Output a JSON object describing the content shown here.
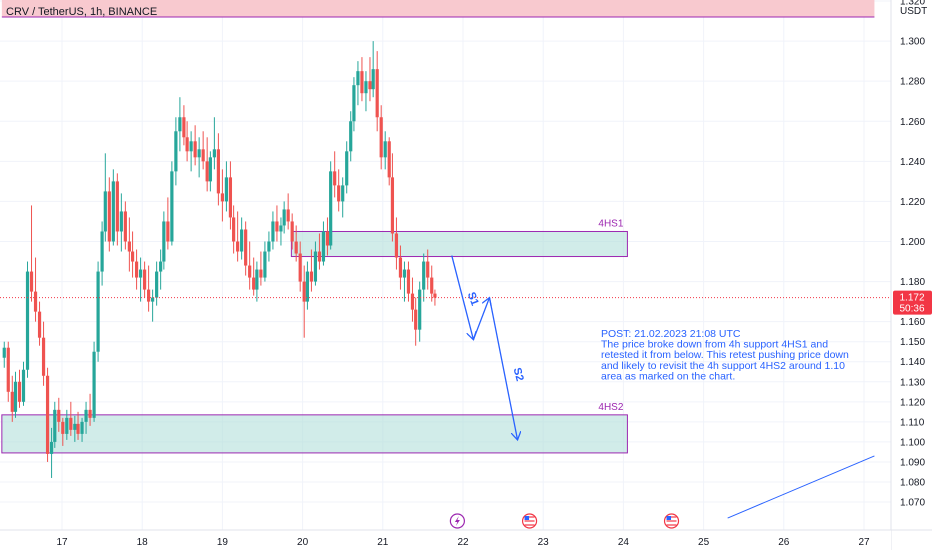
{
  "header": {
    "symbol": "CRV / TetherUS, 1h, BINANCE",
    "currency": "USDT"
  },
  "price_badge": {
    "price": "1.172",
    "countdown": "50:36",
    "color": "#f23645"
  },
  "colors": {
    "up": "#26a69a",
    "down": "#ef5350",
    "zone_fill": "#b2dfdb",
    "zone_border": "#9c27b0",
    "resistance_fill": "#f8c9cf",
    "drawing": "#2962ff"
  },
  "chart_data": {
    "type": "candlestick",
    "symbol": "CRV / TetherUS",
    "timeframe": "1h",
    "exchange": "BINANCE",
    "x_ticks": [
      "17",
      "18",
      "19",
      "20",
      "21",
      "22",
      "23",
      "24",
      "25",
      "26",
      "27"
    ],
    "x_range_days": [
      16.25,
      27.13
    ],
    "y_ticks": [
      "1.320",
      "1.300",
      "1.280",
      "1.260",
      "1.240",
      "1.220",
      "1.200",
      "1.180",
      "1.160",
      "1.150",
      "1.140",
      "1.130",
      "1.120",
      "1.110",
      "1.100",
      "1.090",
      "1.080",
      "1.070"
    ],
    "ylim": [
      1.062,
      1.33
    ],
    "last_price": 1.172,
    "zones": [
      {
        "name": "4HS1",
        "low": 1.1925,
        "high": 1.205,
        "start_day": 19.86,
        "end_day": 24.05
      },
      {
        "name": "4HS2",
        "low": 1.0945,
        "high": 1.1135,
        "start_day": 16.25,
        "end_day": 24.05
      },
      {
        "name": "resistance",
        "low": 1.312,
        "high": 1.33,
        "start_day": 16.25,
        "end_day": 27.13
      }
    ],
    "projection": {
      "labels": [
        "S1",
        "S2"
      ],
      "path": [
        {
          "day": 21.86,
          "price": 1.193
        },
        {
          "day": 22.13,
          "price": 1.151
        },
        {
          "day": 22.33,
          "price": 1.172
        },
        {
          "day": 22.68,
          "price": 1.101
        }
      ]
    },
    "trendline": [
      {
        "day": 25.3,
        "price": 1.062
      },
      {
        "day": 27.13,
        "price": 1.093
      }
    ],
    "annotation": [
      "POST: 21.02.2023 21:08 UTC",
      "The price broke down from 4h support 4HS1 and",
      "retested it from below. This retest pushing price down",
      "and likely to revisit the 4h support 4HS2 around 1.10",
      "area as marked on the chart."
    ],
    "events": [
      {
        "day": 21.93,
        "icon": "lightning-icon"
      },
      {
        "day": 22.83,
        "icon": "us-flag-icon"
      },
      {
        "day": 24.6,
        "icon": "us-flag-icon"
      }
    ],
    "candles": [
      [
        16.28,
        1.142,
        1.15,
        1.137,
        1.147
      ],
      [
        16.33,
        1.147,
        1.15,
        1.12,
        1.125
      ],
      [
        16.38,
        1.125,
        1.133,
        1.11,
        1.115
      ],
      [
        16.42,
        1.115,
        1.135,
        1.112,
        1.13
      ],
      [
        16.47,
        1.13,
        1.136,
        1.117,
        1.12
      ],
      [
        16.52,
        1.12,
        1.14,
        1.118,
        1.136
      ],
      [
        16.57,
        1.136,
        1.19,
        1.132,
        1.185
      ],
      [
        16.62,
        1.185,
        1.218,
        1.17,
        1.175
      ],
      [
        16.67,
        1.175,
        1.192,
        1.16,
        1.165
      ],
      [
        16.72,
        1.165,
        1.17,
        1.148,
        1.152
      ],
      [
        16.77,
        1.152,
        1.16,
        1.128,
        1.133
      ],
      [
        16.82,
        1.133,
        1.137,
        1.09,
        1.094
      ],
      [
        16.87,
        1.094,
        1.107,
        1.082,
        1.1
      ],
      [
        16.91,
        1.1,
        1.12,
        1.097,
        1.116
      ],
      [
        16.96,
        1.116,
        1.122,
        1.105,
        1.11
      ],
      [
        17.01,
        1.11,
        1.112,
        1.098,
        1.104
      ],
      [
        17.06,
        1.104,
        1.116,
        1.101,
        1.112
      ],
      [
        17.11,
        1.112,
        1.12,
        1.103,
        1.106
      ],
      [
        17.16,
        1.106,
        1.113,
        1.1,
        1.109
      ],
      [
        17.2,
        1.109,
        1.115,
        1.101,
        1.104
      ],
      [
        17.25,
        1.104,
        1.112,
        1.1,
        1.11
      ],
      [
        17.3,
        1.11,
        1.12,
        1.104,
        1.116
      ],
      [
        17.35,
        1.116,
        1.124,
        1.108,
        1.112
      ],
      [
        17.4,
        1.112,
        1.15,
        1.11,
        1.145
      ],
      [
        17.45,
        1.145,
        1.19,
        1.14,
        1.185
      ],
      [
        17.5,
        1.185,
        1.21,
        1.178,
        1.205
      ],
      [
        17.54,
        1.205,
        1.244,
        1.2,
        1.225
      ],
      [
        17.59,
        1.225,
        1.232,
        1.195,
        1.2
      ],
      [
        17.64,
        1.2,
        1.236,
        1.198,
        1.23
      ],
      [
        17.69,
        1.23,
        1.234,
        1.198,
        1.205
      ],
      [
        17.74,
        1.205,
        1.224,
        1.195,
        1.215
      ],
      [
        17.79,
        1.215,
        1.22,
        1.196,
        1.2
      ],
      [
        17.84,
        1.2,
        1.212,
        1.185,
        1.195
      ],
      [
        17.88,
        1.195,
        1.205,
        1.182,
        1.19
      ],
      [
        17.93,
        1.19,
        1.196,
        1.176,
        1.182
      ],
      [
        17.98,
        1.182,
        1.192,
        1.17,
        1.186
      ],
      [
        18.03,
        1.186,
        1.19,
        1.172,
        1.176
      ],
      [
        18.08,
        1.176,
        1.188,
        1.165,
        1.17
      ],
      [
        18.13,
        1.17,
        1.176,
        1.16,
        1.172
      ],
      [
        18.18,
        1.172,
        1.19,
        1.168,
        1.185
      ],
      [
        18.23,
        1.185,
        1.196,
        1.176,
        1.19
      ],
      [
        18.27,
        1.19,
        1.215,
        1.186,
        1.21
      ],
      [
        18.32,
        1.21,
        1.222,
        1.196,
        1.2
      ],
      [
        18.37,
        1.2,
        1.24,
        1.198,
        1.235
      ],
      [
        18.42,
        1.235,
        1.262,
        1.228,
        1.255
      ],
      [
        18.47,
        1.255,
        1.272,
        1.245,
        1.262
      ],
      [
        18.52,
        1.262,
        1.268,
        1.248,
        1.252
      ],
      [
        18.56,
        1.252,
        1.26,
        1.24,
        1.245
      ],
      [
        18.61,
        1.245,
        1.255,
        1.235,
        1.25
      ],
      [
        18.66,
        1.25,
        1.258,
        1.238,
        1.242
      ],
      [
        18.71,
        1.242,
        1.252,
        1.232,
        1.246
      ],
      [
        18.76,
        1.246,
        1.255,
        1.236,
        1.24
      ],
      [
        18.81,
        1.24,
        1.252,
        1.225,
        1.23
      ],
      [
        18.85,
        1.23,
        1.245,
        1.225,
        1.242
      ],
      [
        18.9,
        1.242,
        1.262,
        1.236,
        1.246
      ],
      [
        18.95,
        1.246,
        1.254,
        1.218,
        1.224
      ],
      [
        19.0,
        1.224,
        1.236,
        1.21,
        1.22
      ],
      [
        19.05,
        1.22,
        1.24,
        1.215,
        1.232
      ],
      [
        19.1,
        1.232,
        1.24,
        1.206,
        1.212
      ],
      [
        19.14,
        1.212,
        1.218,
        1.194,
        1.2
      ],
      [
        19.19,
        1.2,
        1.215,
        1.19,
        1.195
      ],
      [
        19.24,
        1.195,
        1.212,
        1.191,
        1.206
      ],
      [
        19.29,
        1.206,
        1.21,
        1.183,
        1.188
      ],
      [
        19.34,
        1.188,
        1.2,
        1.176,
        1.182
      ],
      [
        19.39,
        1.182,
        1.192,
        1.173,
        1.176
      ],
      [
        19.43,
        1.176,
        1.19,
        1.17,
        1.186
      ],
      [
        19.48,
        1.186,
        1.195,
        1.178,
        1.182
      ],
      [
        19.53,
        1.182,
        1.2,
        1.18,
        1.195
      ],
      [
        19.58,
        1.195,
        1.205,
        1.19,
        1.2
      ],
      [
        19.63,
        1.2,
        1.215,
        1.196,
        1.21
      ],
      [
        19.68,
        1.21,
        1.218,
        1.2,
        1.205
      ],
      [
        19.73,
        1.205,
        1.212,
        1.198,
        1.208
      ],
      [
        19.77,
        1.208,
        1.22,
        1.204,
        1.216
      ],
      [
        19.82,
        1.216,
        1.224,
        1.206,
        1.21
      ],
      [
        19.87,
        1.21,
        1.214,
        1.196,
        1.2
      ],
      [
        19.92,
        1.2,
        1.208,
        1.19,
        1.194
      ],
      [
        19.97,
        1.194,
        1.2,
        1.175,
        1.18
      ],
      [
        20.02,
        1.18,
        1.188,
        1.152,
        1.17
      ],
      [
        20.06,
        1.17,
        1.19,
        1.166,
        1.185
      ],
      [
        20.11,
        1.185,
        1.196,
        1.175,
        1.18
      ],
      [
        20.16,
        1.18,
        1.2,
        1.178,
        1.195
      ],
      [
        20.21,
        1.195,
        1.204,
        1.186,
        1.19
      ],
      [
        20.26,
        1.19,
        1.21,
        1.188,
        1.205
      ],
      [
        20.31,
        1.205,
        1.212,
        1.193,
        1.198
      ],
      [
        20.35,
        1.198,
        1.24,
        1.196,
        1.235
      ],
      [
        20.4,
        1.235,
        1.245,
        1.222,
        1.228
      ],
      [
        20.45,
        1.228,
        1.236,
        1.215,
        1.22
      ],
      [
        20.5,
        1.22,
        1.232,
        1.212,
        1.228
      ],
      [
        20.55,
        1.228,
        1.25,
        1.224,
        1.245
      ],
      [
        20.6,
        1.245,
        1.265,
        1.24,
        1.26
      ],
      [
        20.64,
        1.26,
        1.282,
        1.255,
        1.278
      ],
      [
        20.69,
        1.278,
        1.29,
        1.268,
        1.285
      ],
      [
        20.74,
        1.285,
        1.292,
        1.27,
        1.274
      ],
      [
        20.79,
        1.274,
        1.285,
        1.265,
        1.28
      ],
      [
        20.84,
        1.28,
        1.292,
        1.27,
        1.276
      ],
      [
        20.88,
        1.276,
        1.3,
        1.272,
        1.286
      ],
      [
        20.93,
        1.286,
        1.295,
        1.255,
        1.262
      ],
      [
        20.98,
        1.262,
        1.268,
        1.236,
        1.242
      ],
      [
        21.03,
        1.242,
        1.255,
        1.236,
        1.25
      ],
      [
        21.08,
        1.25,
        1.252,
        1.228,
        1.232
      ],
      [
        21.12,
        1.232,
        1.244,
        1.2,
        1.204
      ],
      [
        21.17,
        1.204,
        1.212,
        1.186,
        1.192
      ],
      [
        21.22,
        1.192,
        1.198,
        1.176,
        1.182
      ],
      [
        21.27,
        1.182,
        1.19,
        1.17,
        1.186
      ],
      [
        21.32,
        1.186,
        1.19,
        1.17,
        1.174
      ],
      [
        21.37,
        1.174,
        1.182,
        1.16,
        1.166
      ],
      [
        21.41,
        1.166,
        1.172,
        1.148,
        1.156
      ],
      [
        21.46,
        1.156,
        1.18,
        1.15,
        1.176
      ],
      [
        21.51,
        1.176,
        1.194,
        1.17,
        1.19
      ],
      [
        21.56,
        1.19,
        1.196,
        1.176,
        1.182
      ],
      [
        21.61,
        1.182,
        1.188,
        1.17,
        1.174
      ],
      [
        21.65,
        1.174,
        1.176,
        1.168,
        1.172
      ]
    ]
  }
}
